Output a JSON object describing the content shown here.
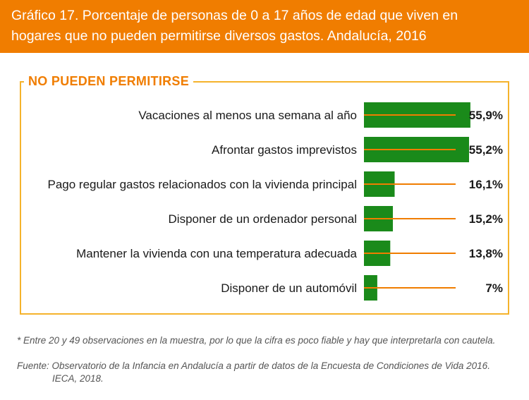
{
  "title": {
    "line1": "Gráfico 17. Porcentaje de personas de 0 a 17 años de edad que viven en",
    "line2": "hogares que no pueden permitirse diversos gastos. Andalucía, 2016"
  },
  "chart_data": {
    "type": "bar",
    "orientation": "horizontal",
    "group_label": "NO PUEDEN PERMITIRSE",
    "categories": [
      "Vacaciones al menos una semana al año",
      "Afrontar gastos imprevistos",
      "Pago regular gastos relacionados con la vivienda principal",
      "Disponer de un ordenador personal",
      "Mantener la vivienda con una temperatura adecuada",
      "Disponer de un automóvil"
    ],
    "values": [
      55.9,
      55.2,
      16.1,
      15.2,
      13.8,
      7
    ],
    "value_labels": [
      "55,9%",
      "55,2%",
      "16,1%",
      "15,2%",
      "13,8%",
      "7%"
    ],
    "xlim": [
      0,
      60
    ],
    "bar_color": "#1a8a1a",
    "leader_line_color": "#f07d00",
    "grid": false,
    "legend": "none"
  },
  "notes": {
    "note": "* Entre 20 y 49 observaciones en la muestra, por lo que la cifra es poco fiable y hay que interpretarla con cautela.",
    "source_line1": "Fuente: Observatorio de la Infancia en Andalucía a partir de datos de la Encuesta de Condiciones de Vida 2016.",
    "source_line2": "IECA, 2018."
  }
}
